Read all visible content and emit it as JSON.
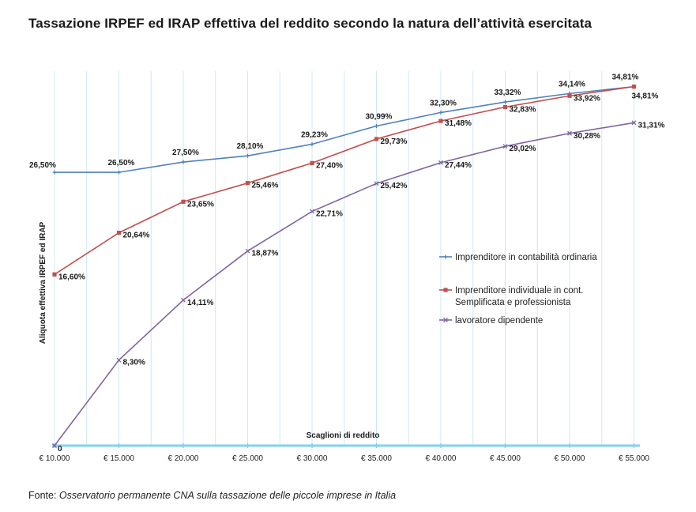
{
  "title": "Tassazione IRPEF ed IRAP  effettiva del reddito secondo la natura dell’attività esercitata",
  "source": {
    "prefix": "Fonte:",
    "text": "Osservatorio permanente CNA sulla tassazione delle piccole imprese in Italia"
  },
  "colors": {
    "series1": "#4f81bd",
    "series2": "#c0504d",
    "series3": "#8064a2",
    "axis": "#7fd3f0",
    "grid": "#cfe7f4"
  },
  "chart_data": {
    "type": "line",
    "title": "Tassazione IRPEF ed IRAP  effettiva del reddito secondo la natura dell’attività esercitata",
    "xlabel": "Scaglioni di reddito",
    "ylabel": "Aliquota effettiva IRPEF ed IRAP",
    "categories": [
      "€ 10.000",
      "€ 15.000",
      "€ 20.000",
      "€ 25.000",
      "€ 30.000",
      "€ 35.000",
      "€ 40.000",
      "€ 45.000",
      "€ 50.000",
      "€ 55.000"
    ],
    "ylim": [
      0,
      38
    ],
    "grid": "vertical",
    "legend": "right",
    "series": [
      {
        "name": "Imprenditore in contabilità  ordinaria",
        "values": [
          26.5,
          26.5,
          27.5,
          28.1,
          29.23,
          30.99,
          32.3,
          33.32,
          34.14,
          34.81
        ],
        "labels": [
          "26,50%",
          "26,50%",
          "27,50%",
          "28,10%",
          "29,23%",
          "30,99%",
          "32,30%",
          "33,32%",
          "34,14%",
          "34,81%"
        ]
      },
      {
        "name": "Imprenditore  individuale  in  cont. Semplificata e professionista",
        "legend_lines": [
          "Imprenditore  individuale  in  cont.",
          "Semplificata e professionista"
        ],
        "values": [
          16.6,
          20.64,
          23.65,
          25.46,
          27.4,
          29.73,
          31.48,
          32.83,
          33.92,
          34.81
        ],
        "labels": [
          "16,60%",
          "20,64%",
          "23,65%",
          "25,46%",
          "27,40%",
          "29,73%",
          "31,48%",
          "32,83%",
          "33,92%",
          "34,81%"
        ]
      },
      {
        "name": "lavoratore dipendente",
        "values": [
          0,
          8.3,
          14.11,
          18.87,
          22.71,
          25.42,
          27.44,
          29.02,
          30.28,
          31.31
        ],
        "labels": [
          "0",
          "8,30%",
          "14,11%",
          "18,87%",
          "22,71%",
          "25,42%",
          "27,44%",
          "29,02%",
          "30,28%",
          "31,31%"
        ]
      }
    ]
  }
}
